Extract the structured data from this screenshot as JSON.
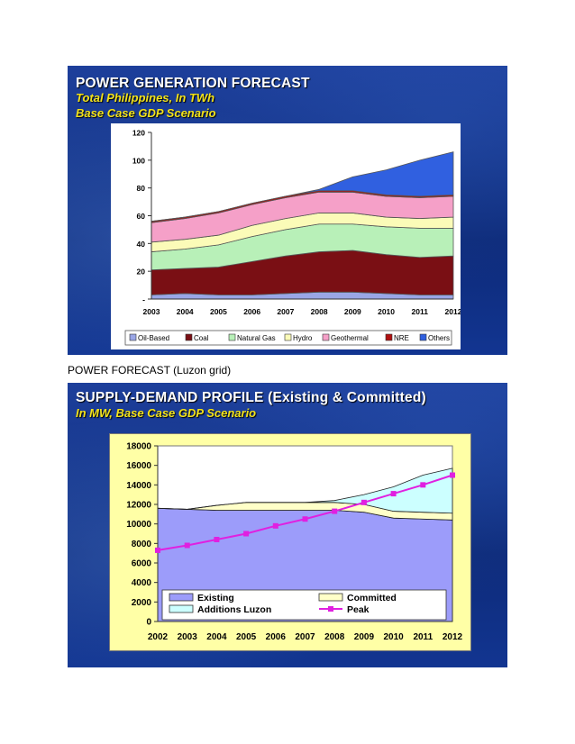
{
  "slide1": {
    "title": "POWER GENERATION FORECAST",
    "subtitle1": "Total Philippines, In TWh",
    "subtitle2": "Base Case GDP Scenario"
  },
  "caption": "POWER FORECAST (Luzon grid)",
  "slide2": {
    "title": "SUPPLY-DEMAND PROFILE (Existing & Committed)",
    "subtitle": "In MW, Base Case GDP Scenario"
  },
  "chart_data": [
    {
      "type": "area",
      "stacked": true,
      "x": [
        "2003",
        "2004",
        "2005",
        "2006",
        "2007",
        "2008",
        "2009",
        "2010",
        "2011",
        "2012"
      ],
      "ylim": [
        0,
        120
      ],
      "yticks": [
        "-",
        "20",
        "40",
        "60",
        "80",
        "100",
        "120"
      ],
      "grid": false,
      "legend_position": "bottom",
      "series": [
        {
          "name": "Oil-Based",
          "color": "#9aa6e6",
          "values": [
            3,
            4,
            3,
            3,
            4,
            5,
            5,
            4,
            3,
            3
          ]
        },
        {
          "name": "Coal",
          "color": "#7a0f14",
          "values": [
            18,
            18,
            20,
            24,
            27,
            29,
            30,
            28,
            27,
            28
          ]
        },
        {
          "name": "Natural Gas",
          "color": "#b8f0b8",
          "values": [
            13,
            14,
            16,
            18,
            19,
            20,
            19,
            20,
            21,
            20
          ]
        },
        {
          "name": "Hydro",
          "color": "#fbfbb8",
          "values": [
            7,
            7,
            7,
            8,
            8,
            8,
            8,
            7,
            7,
            8
          ]
        },
        {
          "name": "Geothermal",
          "color": "#f5a0c8",
          "values": [
            14,
            15,
            16,
            15,
            15,
            15,
            15,
            15,
            15,
            15
          ]
        },
        {
          "name": "NRE",
          "color": "#b01010",
          "values": [
            1,
            1,
            1,
            1,
            1,
            1,
            1,
            1,
            1,
            1
          ]
        },
        {
          "name": "Others",
          "color": "#3060e0",
          "values": [
            0,
            0,
            0,
            0,
            0,
            1,
            10,
            18,
            26,
            31
          ]
        }
      ]
    },
    {
      "type": "area",
      "stacked": true,
      "x": [
        "2002",
        "2003",
        "2004",
        "2005",
        "2006",
        "2007",
        "2008",
        "2009",
        "2010",
        "2011",
        "2012"
      ],
      "ylim": [
        0,
        18000
      ],
      "yticks": [
        "0",
        "2000",
        "4000",
        "6000",
        "8000",
        "10000",
        "12000",
        "14000",
        "16000",
        "18000"
      ],
      "grid": false,
      "legend_position": "bottom",
      "series": [
        {
          "name": "Existing",
          "color": "#9c9cfa",
          "values": [
            11600,
            11500,
            11400,
            11400,
            11400,
            11400,
            11400,
            11200,
            10600,
            10500,
            10400
          ]
        },
        {
          "name": "Committed",
          "color": "#ffffc8",
          "values": [
            0,
            0,
            500,
            800,
            800,
            800,
            800,
            800,
            700,
            700,
            700
          ]
        },
        {
          "name": "Additions Luzon",
          "color": "#ccffff",
          "values": [
            0,
            0,
            0,
            0,
            0,
            0,
            200,
            1000,
            2500,
            3800,
            4600
          ]
        }
      ],
      "line": {
        "name": "Peak",
        "color": "#e020e0",
        "values": [
          7300,
          7800,
          8400,
          9000,
          9800,
          10500,
          11300,
          12200,
          13100,
          14000,
          15000
        ]
      }
    }
  ]
}
